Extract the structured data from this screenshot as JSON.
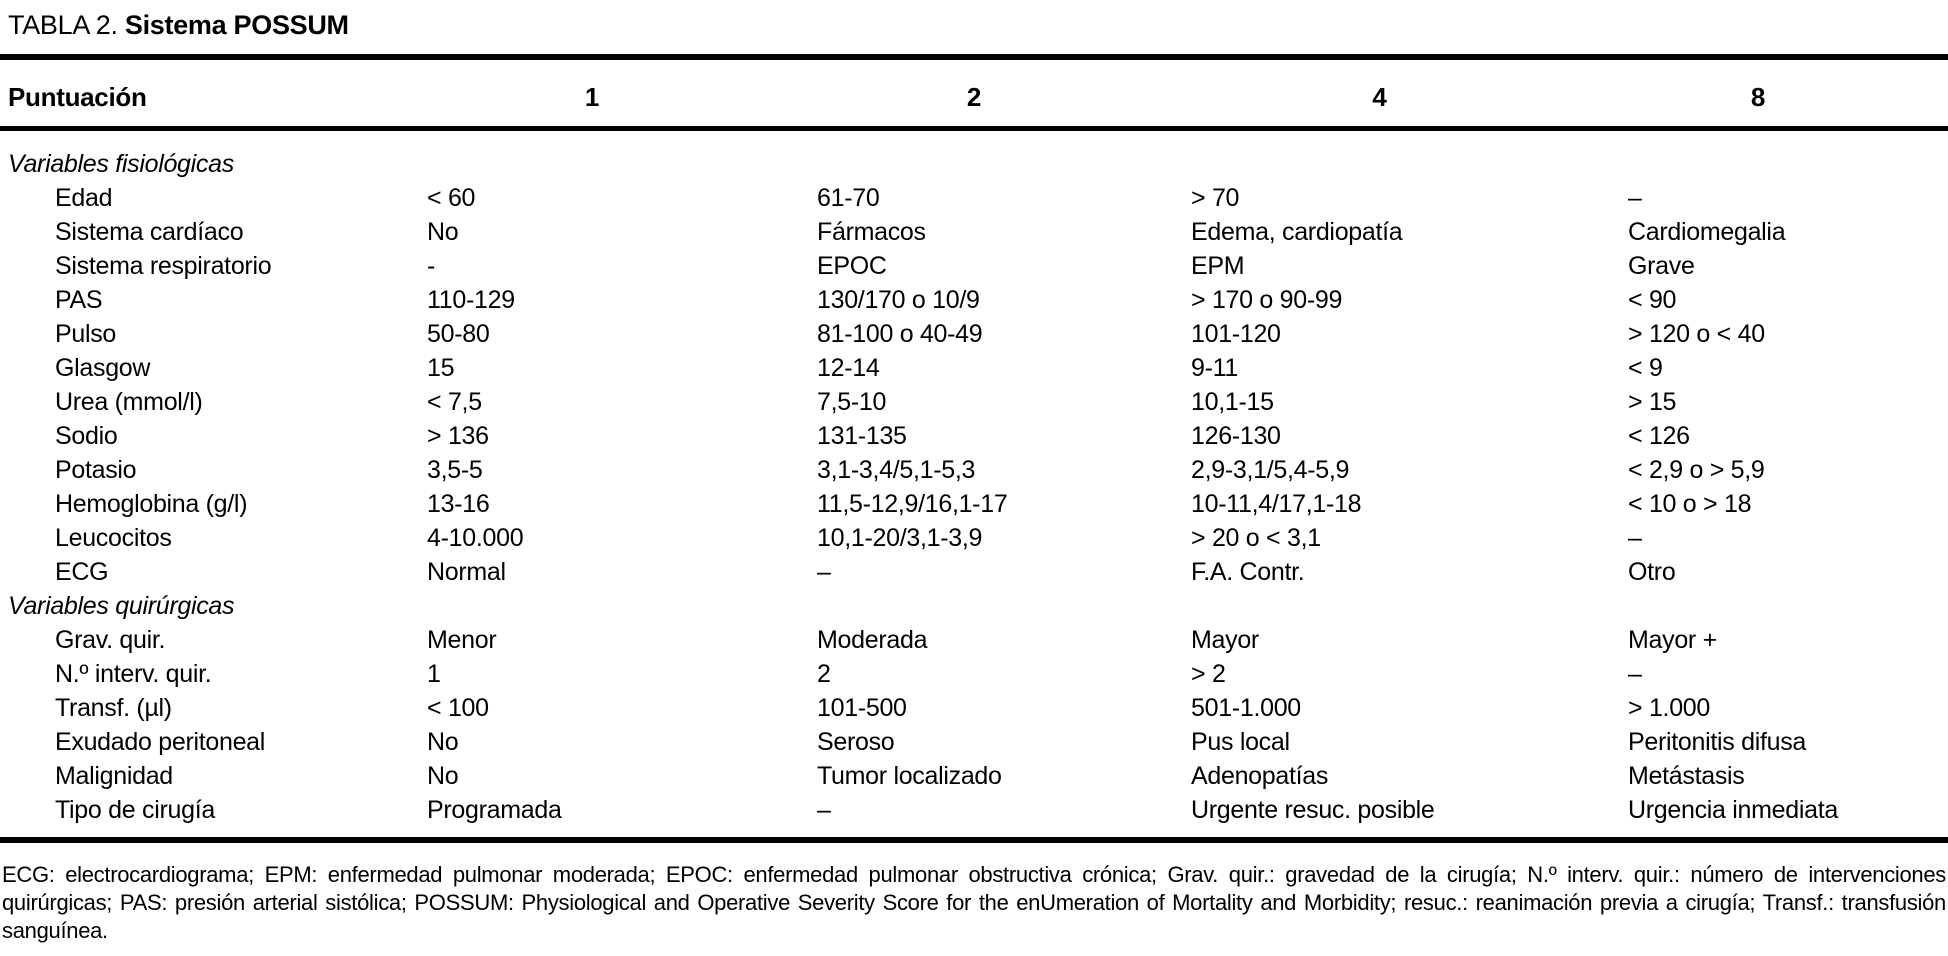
{
  "table": {
    "label": "TABLA 2.",
    "title": "Sistema POSSUM",
    "header": {
      "score_label": "Puntuación",
      "columns": [
        "1",
        "2",
        "4",
        "8"
      ]
    },
    "sections": [
      {
        "title": "Variables fisiológicas",
        "rows": [
          {
            "label": "Edad",
            "values": [
              "< 60",
              "61-70",
              "> 70",
              "–"
            ]
          },
          {
            "label": "Sistema cardíaco",
            "values": [
              "No",
              "Fármacos",
              "Edema, cardiopatía",
              "Cardiomegalia"
            ]
          },
          {
            "label": "Sistema respiratorio",
            "values": [
              "-",
              "EPOC",
              "EPM",
              "Grave"
            ]
          },
          {
            "label": "PAS",
            "values": [
              "110-129",
              "130/170 o 10/9",
              "> 170 o 90-99",
              "< 90"
            ]
          },
          {
            "label": "Pulso",
            "values": [
              "50-80",
              "81-100 o 40-49",
              "101-120",
              "> 120 o < 40"
            ]
          },
          {
            "label": "Glasgow",
            "values": [
              "15",
              "12-14",
              "9-11",
              "< 9"
            ]
          },
          {
            "label": "Urea (mmol/l)",
            "values": [
              "< 7,5",
              "7,5-10",
              "10,1-15",
              "> 15"
            ]
          },
          {
            "label": "Sodio",
            "values": [
              "> 136",
              "131-135",
              "126-130",
              "< 126"
            ]
          },
          {
            "label": "Potasio",
            "values": [
              "3,5-5",
              "3,1-3,4/5,1-5,3",
              "2,9-3,1/5,4-5,9",
              "< 2,9 o > 5,9"
            ]
          },
          {
            "label": "Hemoglobina (g/l)",
            "values": [
              "13-16",
              "11,5-12,9/16,1-17",
              "10-11,4/17,1-18",
              "< 10 o > 18"
            ]
          },
          {
            "label": "Leucocitos",
            "values": [
              "4-10.000",
              "10,1-20/3,1-3,9",
              "> 20 o < 3,1",
              "–"
            ]
          },
          {
            "label": "ECG",
            "values": [
              "Normal",
              "–",
              "F.A. Contr.",
              "Otro"
            ]
          }
        ]
      },
      {
        "title": "Variables quirúrgicas",
        "rows": [
          {
            "label": "Grav. quir.",
            "values": [
              "Menor",
              "Moderada",
              "Mayor",
              "Mayor +"
            ]
          },
          {
            "label": "N.º interv. quir.",
            "values": [
              "1",
              "2",
              "> 2",
              "–"
            ]
          },
          {
            "label": "Transf. (µl)",
            "values": [
              "< 100",
              "101-500",
              "501-1.000",
              "> 1.000"
            ]
          },
          {
            "label": "Exudado peritoneal",
            "values": [
              "No",
              "Seroso",
              "Pus local",
              "Peritonitis difusa"
            ]
          },
          {
            "label": "Malignidad",
            "values": [
              "No",
              "Tumor localizado",
              "Adenopatías",
              "Metástasis"
            ]
          },
          {
            "label": "Tipo de cirugía",
            "values": [
              "Programada",
              "–",
              "Urgente resuc. posible",
              "Urgencia inmediata"
            ]
          }
        ]
      }
    ],
    "footnote": "ECG: electrocardiograma; EPM: enfermedad pulmonar moderada; EPOC: enfermedad pulmonar obstructiva crónica; Grav. quir.: gravedad de la cirugía; N.º interv. quir.: número de intervenciones quirúrgicas; PAS: presión arterial sistólica; POSSUM: Physiological and Operative Severity Score for the enUmeration of Mortality and Morbidity; resuc.: reanimación previa a cirugía; Transf.: transfusión sanguínea."
  }
}
